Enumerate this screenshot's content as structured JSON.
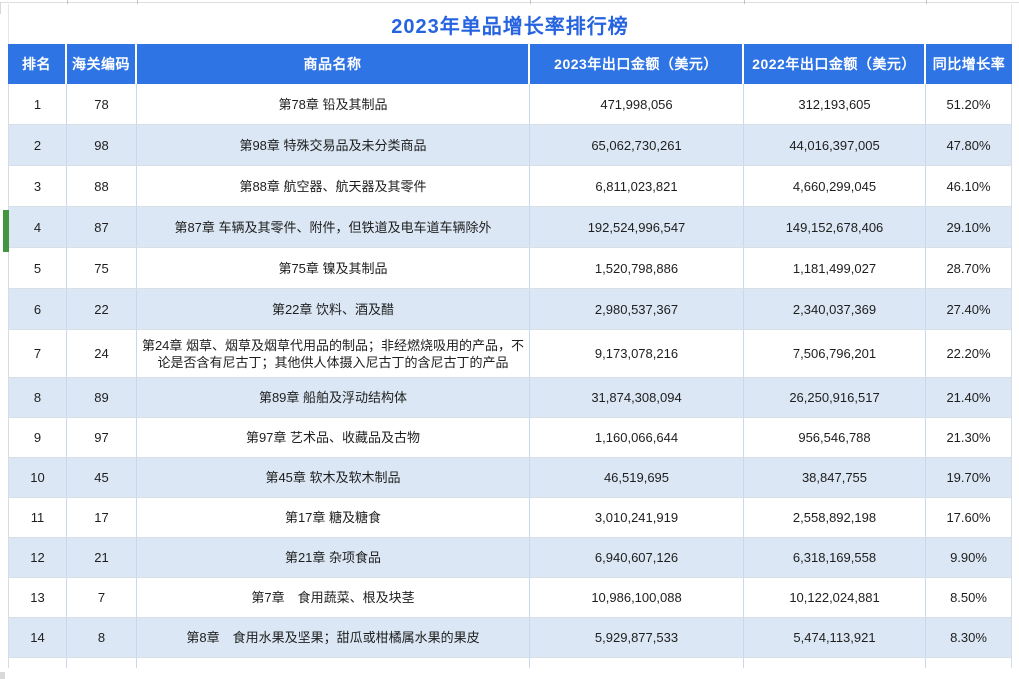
{
  "page": {
    "title": "2023年单品增长率排行榜",
    "colors": {
      "title_text": "#2563df",
      "header_bg": "#2e74e4",
      "zebra_row_bg": "#dbe7f4",
      "selected_row_indicator": "#44953f",
      "gridline": "#c9d8ec"
    }
  },
  "table": {
    "columns": [
      "排名",
      "海关编码",
      "商品名称",
      "2023年出口金额（美元）",
      "2022年出口金额（美元）",
      "同比增长率"
    ],
    "rows": [
      {
        "rank": "1",
        "code": "78",
        "name": "第78章 铅及其制品",
        "amt_2023": "471,998,056",
        "amt_2022": "312,193,605",
        "growth": "51.20%"
      },
      {
        "rank": "2",
        "code": "98",
        "name": "第98章 特殊交易品及未分类商品",
        "amt_2023": "65,062,730,261",
        "amt_2022": "44,016,397,005",
        "growth": "47.80%"
      },
      {
        "rank": "3",
        "code": "88",
        "name": "第88章 航空器、航天器及其零件",
        "amt_2023": "6,811,023,821",
        "amt_2022": "4,660,299,045",
        "growth": "46.10%"
      },
      {
        "rank": "4",
        "code": "87",
        "name": "第87章 车辆及其零件、附件，但铁道及电车道车辆除外",
        "amt_2023": "192,524,996,547",
        "amt_2022": "149,152,678,406",
        "growth": "29.10%",
        "selected": true
      },
      {
        "rank": "5",
        "code": "75",
        "name": "第75章 镍及其制品",
        "amt_2023": "1,520,798,886",
        "amt_2022": "1,181,499,027",
        "growth": "28.70%"
      },
      {
        "rank": "6",
        "code": "22",
        "name": "第22章 饮料、酒及醋",
        "amt_2023": "2,980,537,367",
        "amt_2022": "2,340,037,369",
        "growth": "27.40%"
      },
      {
        "rank": "7",
        "code": "24",
        "name": "第24章 烟草、烟草及烟草代用品的制品；非经燃烧吸用的产品，不论是否含有尼古丁；其他供人体摄入尼古丁的含尼古丁的产品",
        "amt_2023": "9,173,078,216",
        "amt_2022": "7,506,796,201",
        "growth": "22.20%"
      },
      {
        "rank": "8",
        "code": "89",
        "name": "第89章 船舶及浮动结构体",
        "amt_2023": "31,874,308,094",
        "amt_2022": "26,250,916,517",
        "growth": "21.40%"
      },
      {
        "rank": "9",
        "code": "97",
        "name": "第97章 艺术品、收藏品及古物",
        "amt_2023": "1,160,066,644",
        "amt_2022": "956,546,788",
        "growth": "21.30%"
      },
      {
        "rank": "10",
        "code": "45",
        "name": "第45章 软木及软木制品",
        "amt_2023": "46,519,695",
        "amt_2022": "38,847,755",
        "growth": "19.70%"
      },
      {
        "rank": "11",
        "code": "17",
        "name": "第17章 糖及糖食",
        "amt_2023": "3,010,241,919",
        "amt_2022": "2,558,892,198",
        "growth": "17.60%"
      },
      {
        "rank": "12",
        "code": "21",
        "name": "第21章 杂项食品",
        "amt_2023": "6,940,607,126",
        "amt_2022": "6,318,169,558",
        "growth": "9.90%"
      },
      {
        "rank": "13",
        "code": "7",
        "name": "第7章　食用蔬菜、根及块茎",
        "amt_2023": "10,986,100,088",
        "amt_2022": "10,122,024,881",
        "growth": "8.50%"
      },
      {
        "rank": "14",
        "code": "8",
        "name": "第8章　食用水果及坚果；甜瓜或柑橘属水果的果皮",
        "amt_2023": "5,929,877,533",
        "amt_2022": "5,474,113,921",
        "growth": "8.30%"
      }
    ]
  }
}
